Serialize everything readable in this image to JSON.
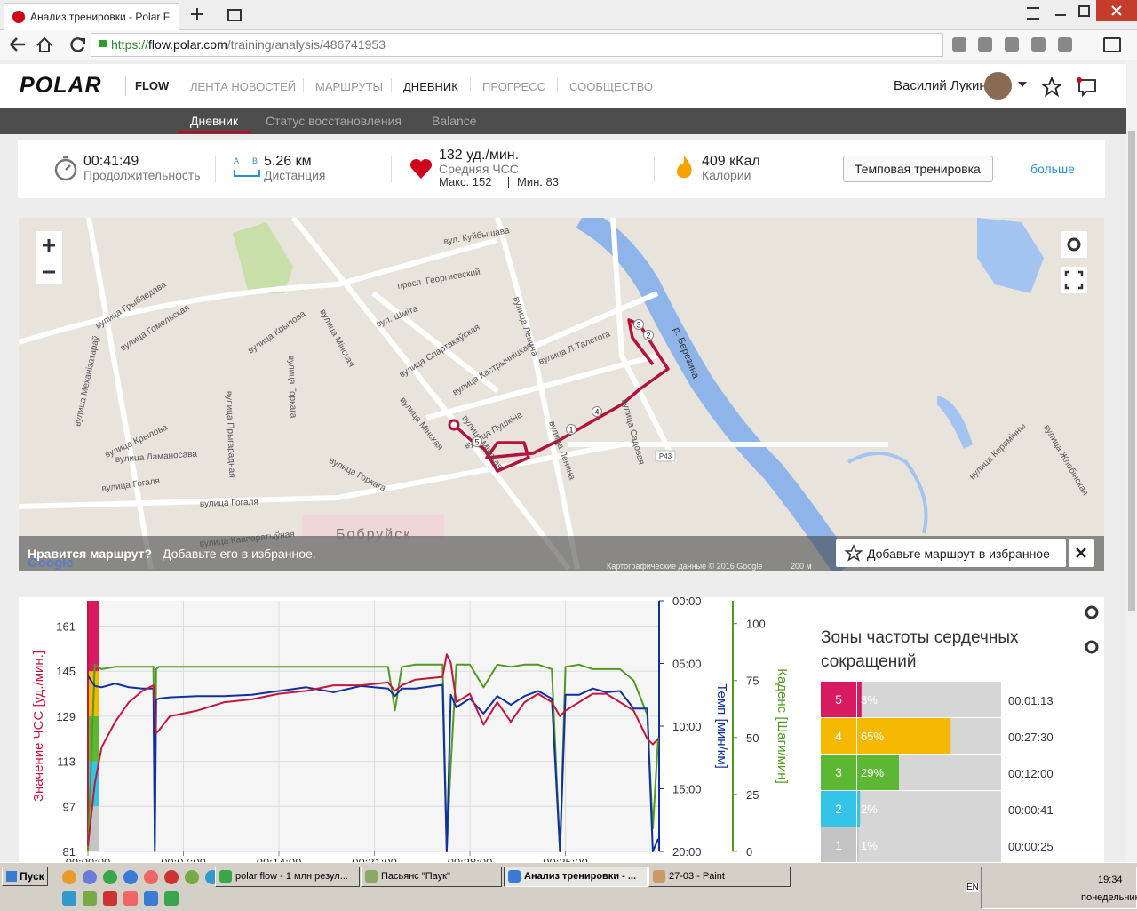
{
  "browser": {
    "tab_title": "Анализ тренировки - Polar F",
    "url_scheme": "https://",
    "url_host": "flow.polar.com",
    "url_path": "/training/analysis/486741953"
  },
  "header": {
    "logo": "POLAR",
    "product": "FLOW",
    "nav": [
      "ЛЕНТА НОВОСТЕЙ",
      "МАРШРУТЫ",
      "ДНЕВНИК",
      "ПРОГРЕСС",
      "СООБЩЕСТВО"
    ],
    "user": "Василий Лукин"
  },
  "subnav": [
    "Дневник",
    "Статус восстановления",
    "Balance"
  ],
  "summary": {
    "duration": "00:41:49",
    "duration_label": "Продолжительность",
    "distance_a": "A",
    "distance_b": "B",
    "distance": "5.26 км",
    "distance_label": "Дистанция",
    "hr": "132 уд./мин.",
    "hr_label": "Средняя ЧСС",
    "hr_max": "Макс. 152",
    "hr_min": "Мин. 83",
    "calories": "409 кКал",
    "calories_label": "Калории",
    "training_type": "Темповая тренировка",
    "more": "больше"
  },
  "map": {
    "streets": [
      "вул. Куйбышава",
      "просп. Георгиевский",
      "вулица Ленина",
      "вул. Шміта",
      "вулица Спартакаўская",
      "вулица Кастрычніцкая",
      "вулица Л.Талстога",
      "вулица Пушкіна",
      "вулица Мінская",
      "вулица Мінская",
      "вулица Крылова",
      "вулица Крылова",
      "вулица Гогаля",
      "вулица Гогаля",
      "вулица Горкага",
      "вулица Ламаносава",
      "вулица Гомельская",
      "вулица Грыбаедава",
      "вулица Механізатараў",
      "вулица Садовая",
      "вулица Кааператыўная",
      "вулица Прыгарадная",
      "вулица Горкага",
      "вулица Жлобінская",
      "вулица Керамічны",
      "вулица Мінская",
      "вулица Ленина"
    ],
    "city": "Бобруйск",
    "river": "р. Березина",
    "road": "P43",
    "markers": [
      "1",
      "2",
      "3",
      "4",
      "5"
    ],
    "banner_question": "Нравится маршрут?",
    "banner_text": "Добавьте его в избранное.",
    "add_favorite": "Добавьте маршрут в избранное",
    "copyright": "Картографические данные © 2016 Google",
    "scale": "200 м",
    "logo": "Google"
  },
  "chart_data": [
    {
      "type": "line",
      "ylabel": "Значение ЧСС [уд./мин.]",
      "y2label": "Темп [мин/км]",
      "y3label": "Каденс [Шаги/мин]",
      "x": [
        0,
        0.5,
        1,
        2,
        3,
        4,
        4.8,
        4.9,
        5.0,
        5.2,
        6,
        8,
        10,
        12,
        14,
        16,
        18,
        20,
        22,
        22.5,
        23,
        24,
        26,
        26.3,
        26.6,
        27,
        28,
        29,
        30,
        31,
        32,
        33,
        34,
        34.6,
        35,
        36,
        37,
        38,
        39,
        40,
        41,
        41.4,
        41.8
      ],
      "xlim": [
        0,
        41.8
      ],
      "xticks": [
        {
          "value": 0,
          "label": "00:00:00"
        },
        {
          "value": 7,
          "label": "00:07:00"
        },
        {
          "value": 14,
          "label": "00:14:00"
        },
        {
          "value": 21,
          "label": "00:21:00"
        },
        {
          "value": 28,
          "label": "00:28:00"
        },
        {
          "value": 35,
          "label": "00:35:00"
        }
      ],
      "ylim": [
        81,
        170
      ],
      "yticks": [
        81,
        97,
        113,
        129,
        145,
        161
      ],
      "y2lim": [
        20,
        0
      ],
      "y2ticks": [
        {
          "value": 0,
          "label": "00:00"
        },
        {
          "value": 5,
          "label": "05:00"
        },
        {
          "value": 10,
          "label": "10:00"
        },
        {
          "value": 15,
          "label": "15:00"
        },
        {
          "value": 20,
          "label": "20:00"
        }
      ],
      "y3lim": [
        0,
        110
      ],
      "y3ticks": [
        0,
        25,
        50,
        75,
        100
      ],
      "grid": true,
      "series": [
        {
          "name": "ЧСС",
          "color": "#c4173c",
          "axis": "y",
          "values": [
            83,
            105,
            118,
            127,
            134,
            138,
            140,
            131,
            123,
            124,
            129,
            131,
            134,
            135,
            137,
            138,
            140,
            140,
            141,
            138,
            140,
            142,
            143,
            151,
            148,
            134,
            137,
            126,
            134,
            127,
            134,
            137,
            134,
            129,
            131,
            134,
            137,
            137,
            134,
            131,
            121,
            119,
            121
          ]
        },
        {
          "name": "Темп",
          "color": "#1030a0",
          "axis": "y2",
          "values": [
            6.0,
            6.8,
            6.9,
            6.6,
            6.9,
            7.0,
            7.0,
            20,
            7.9,
            7.8,
            7.7,
            7.6,
            7.6,
            7.5,
            7.2,
            6.9,
            7.3,
            6.8,
            7.0,
            7.6,
            7.0,
            7.0,
            6.7,
            20,
            7.5,
            8.5,
            7.8,
            9.0,
            7.6,
            8.3,
            7.6,
            7.2,
            7.8,
            20,
            7.5,
            7.5,
            7.0,
            7.3,
            7.2,
            8.6,
            8.6,
            20,
            19
          ]
        },
        {
          "name": "Каденс",
          "color": "#4f9a1f",
          "axis": "y3",
          "values": [
            0,
            82,
            80,
            81,
            81,
            81,
            81,
            3,
            80,
            81,
            81,
            81,
            81,
            81,
            81,
            81,
            81,
            81,
            81,
            62,
            81,
            82,
            82,
            0,
            38,
            82,
            82,
            72,
            82,
            81,
            82,
            82,
            80,
            0,
            81,
            82,
            80,
            80,
            80,
            75,
            60,
            10,
            50
          ]
        }
      ]
    },
    {
      "type": "bar",
      "title": "Зоны частоты сердечных сокращений",
      "categories": [
        "5",
        "4",
        "3",
        "2",
        "1"
      ],
      "values": [
        3,
        65,
        29,
        2,
        1
      ],
      "value_labels": [
        "3%",
        "65%",
        "29%",
        "2%",
        "1%"
      ],
      "durations": [
        "00:01:13",
        "00:27:30",
        "00:12:00",
        "00:00:41",
        "00:00:25"
      ],
      "colors": [
        "#d81b60",
        "#f5b800",
        "#5cb832",
        "#33c4e8",
        "#c4c4c4"
      ],
      "xlim": [
        0,
        100
      ]
    }
  ],
  "taskbar": {
    "start": "Пуск",
    "windows": [
      "polar flow - 1 млн резул...",
      "Пасьянс \"Паук\"",
      "Анализ тренировки - ...",
      "27-03 - Paint"
    ],
    "lang": "EN",
    "time": "19:34",
    "day": "понедельник"
  }
}
